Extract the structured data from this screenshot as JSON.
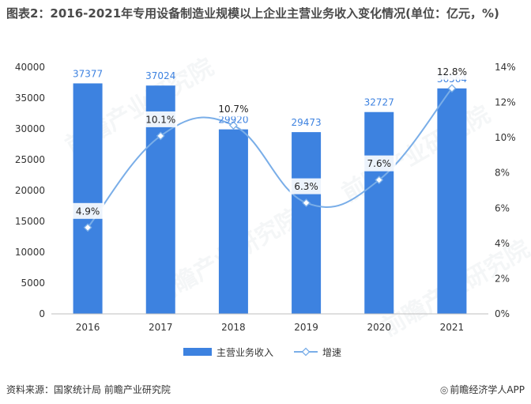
{
  "title": "图表2：2016-2021年专用设备制造业规模以上企业主营业务收入变化情况(单位：亿元，%)",
  "source": "资料来源：国家统计局 前瞻产业研究院",
  "brand": "前瞻经济学人APP",
  "watermark": "前瞻产业研究院",
  "colors": {
    "bar": "#3d82e0",
    "line": "#7aaee8",
    "title": "#4a4a4a"
  },
  "chart_data": {
    "type": "bar+line",
    "categories": [
      "2016",
      "2017",
      "2018",
      "2019",
      "2020",
      "2021"
    ],
    "series": [
      {
        "name": "主营业务收入",
        "type": "bar",
        "axis": "left",
        "values": [
          37377,
          37024,
          29920,
          29473,
          32727,
          36564
        ],
        "labels": [
          "37377",
          "37024",
          "29920",
          "29473",
          "32727",
          "36564"
        ]
      },
      {
        "name": "增速",
        "type": "line",
        "axis": "right",
        "values": [
          4.9,
          10.1,
          10.7,
          6.3,
          7.6,
          12.8
        ],
        "labels": [
          "4.9%",
          "10.1%",
          "10.7%",
          "6.3%",
          "7.6%",
          "12.8%"
        ]
      }
    ],
    "y_left": {
      "min": 0,
      "max": 40000,
      "ticks": [
        "0",
        "5000",
        "10000",
        "15000",
        "20000",
        "25000",
        "30000",
        "35000",
        "40000"
      ]
    },
    "y_right": {
      "min": 0,
      "max": 14,
      "ticks": [
        "0%",
        "2%",
        "4%",
        "6%",
        "8%",
        "10%",
        "12%",
        "14%"
      ]
    },
    "legend_position": "bottom-center"
  }
}
